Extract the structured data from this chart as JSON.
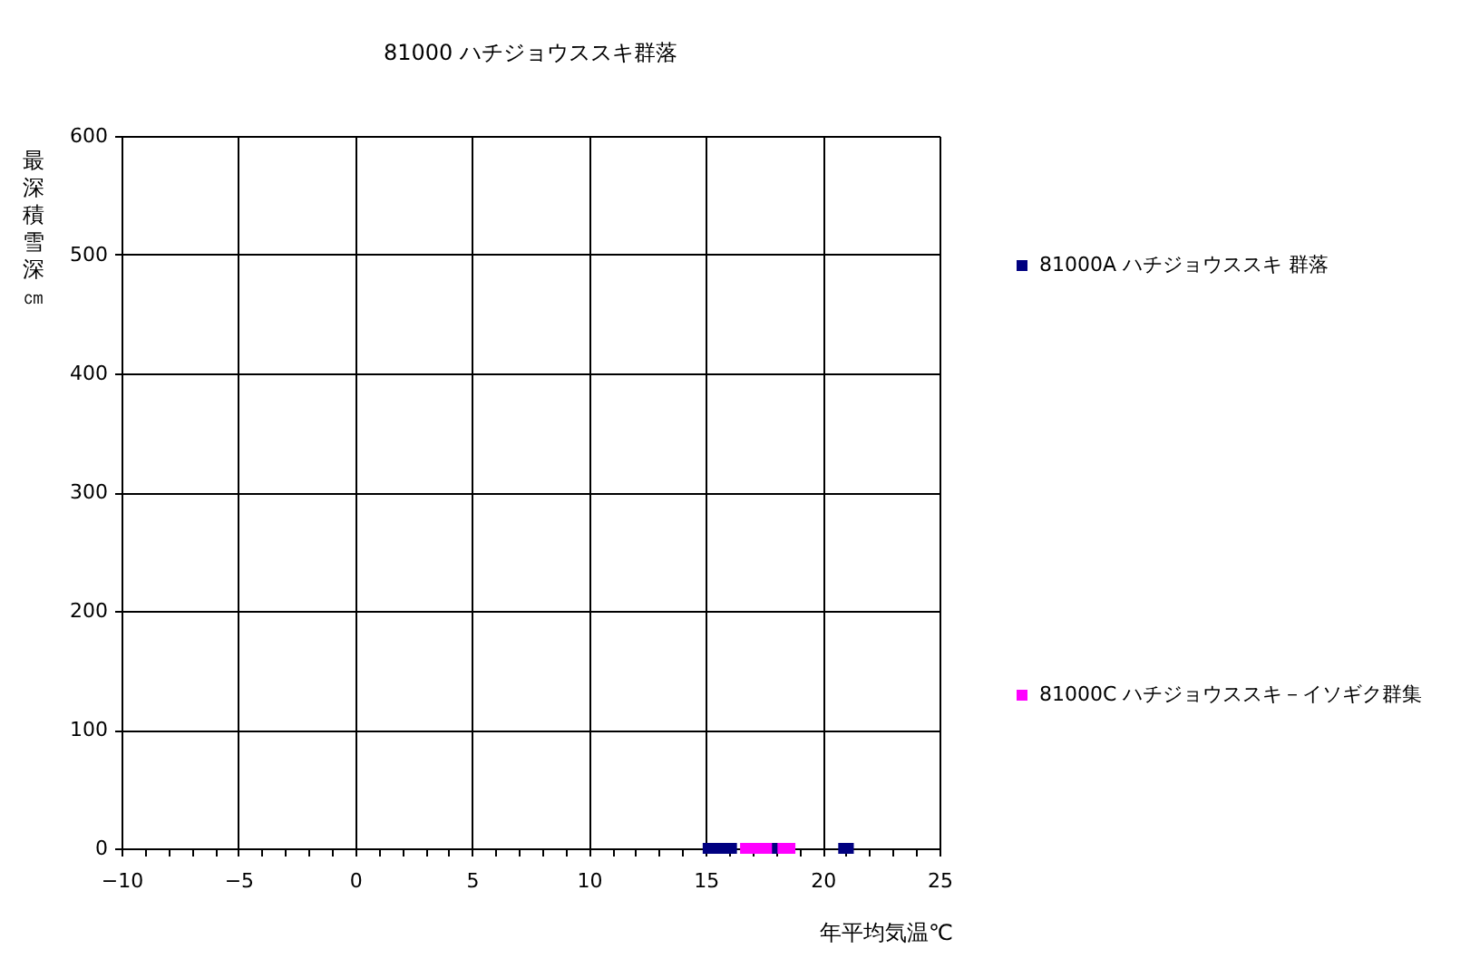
{
  "chart_data": {
    "type": "scatter",
    "title": "81000 ハチジョウススキ群落",
    "xlabel": "年平均気温℃",
    "ylabel": "最深積雪深㎝",
    "xlim": [
      -10,
      25
    ],
    "ylim": [
      0,
      600
    ],
    "xticks": [
      -10,
      {
        "value": -9,
        "label": null
      },
      {
        "value": -8,
        "label": null
      },
      {
        "value": -7,
        "label": null
      },
      {
        "value": -6,
        "label": null
      },
      -5,
      {
        "value": -4,
        "label": null
      },
      {
        "value": -3,
        "label": null
      },
      {
        "value": -2,
        "label": null
      },
      {
        "value": -1,
        "label": null
      },
      0,
      {
        "value": 1,
        "label": null
      },
      {
        "value": 2,
        "label": null
      },
      {
        "value": 3,
        "label": null
      },
      {
        "value": 4,
        "label": null
      },
      5,
      {
        "value": 6,
        "label": null
      },
      {
        "value": 7,
        "label": null
      },
      {
        "value": 8,
        "label": null
      },
      {
        "value": 9,
        "label": null
      },
      10,
      {
        "value": 11,
        "label": null
      },
      {
        "value": 12,
        "label": null
      },
      {
        "value": 13,
        "label": null
      },
      {
        "value": 14,
        "label": null
      },
      15,
      {
        "value": 16,
        "label": null
      },
      {
        "value": 17,
        "label": null
      },
      {
        "value": 18,
        "label": null
      },
      {
        "value": 19,
        "label": null
      },
      20,
      {
        "value": 21,
        "label": null
      },
      {
        "value": 22,
        "label": null
      },
      {
        "value": 23,
        "label": null
      },
      {
        "value": 24,
        "label": null
      },
      25
    ],
    "yticks": [
      0,
      100,
      200,
      300,
      400,
      500,
      600
    ],
    "grid": true,
    "legend": "right",
    "marker": "square",
    "series": [
      {
        "name": "81000A ハチジョウススキ 群落",
        "color": "#000080",
        "x": [
          15.1,
          15.4,
          15.8,
          16.1,
          17.9,
          20.9,
          21.1
        ],
        "values": [
          0,
          0,
          0,
          0,
          0,
          0,
          0
        ]
      },
      {
        "name": "81000C ハチジョウススキ－イソギク群集",
        "color": "#ff00ff",
        "x": [
          16.7,
          17.0,
          17.3,
          17.6,
          18.3,
          18.6
        ],
        "values": [
          0,
          0,
          0,
          0,
          0,
          0
        ]
      }
    ]
  }
}
